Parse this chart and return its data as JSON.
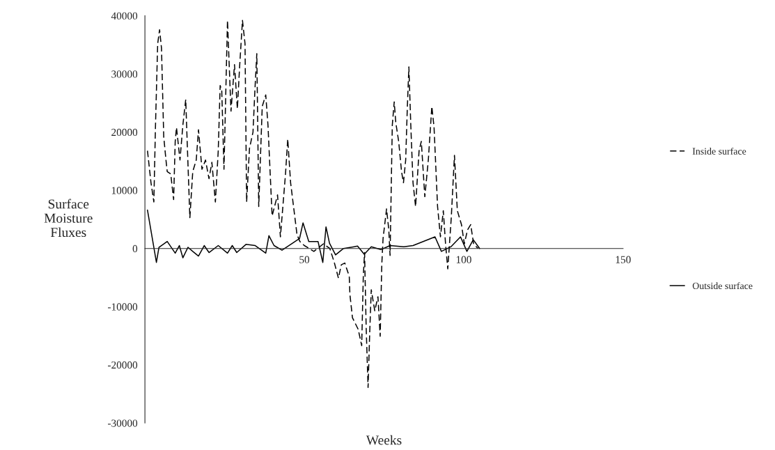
{
  "chart_data": {
    "type": "line",
    "xlabel": "Weeks",
    "ylabel": "Surface\nMoisture\nFluxes",
    "xlim": [
      0,
      150
    ],
    "xticks": [
      50,
      100,
      150
    ],
    "ylim": [
      -30000,
      40000
    ],
    "yticks": [
      -30000,
      -20000,
      -10000,
      0,
      10000,
      20000,
      30000,
      40000
    ],
    "legend": "right",
    "grid": false,
    "marker": "none",
    "series": [
      {
        "name": "Inside surface",
        "color": "#000000",
        "line_style": "dashed",
        "x": [
          0.8,
          1.9,
          2.8,
          3.3,
          4.0,
          4.6,
          5.2,
          5.9,
          6.6,
          7.0,
          8.1,
          9.0,
          9.5,
          9.9,
          11.0,
          11.9,
          12.8,
          13.2,
          14.1,
          15.0,
          16.1,
          16.8,
          17.9,
          19.0,
          20.1,
          21.0,
          22.1,
          23.0,
          23.6,
          24.1,
          24.8,
          25.3,
          25.9,
          27.0,
          28.1,
          29.0,
          29.7,
          30.6,
          31.4,
          31.9,
          32.8,
          33.9,
          34.5,
          35.1,
          35.7,
          36.8,
          37.9,
          38.6,
          39.9,
          41.6,
          42.5,
          44.1,
          44.8,
          45.7,
          47.7,
          48.6,
          50.0,
          53.0,
          56.0,
          58.0,
          59.4,
          60.7,
          61.6,
          62.7,
          64.1,
          64.3,
          65.1,
          66.9,
          68.0,
          68.5,
          68.9,
          69.4,
          70.0,
          70.5,
          71.0,
          72.1,
          73.1,
          73.8,
          74.3,
          74.7,
          75.8,
          76.5,
          76.9,
          77.6,
          78.2,
          78.7,
          79.6,
          80.5,
          81.1,
          81.8,
          82.3,
          82.8,
          83.4,
          84.1,
          84.9,
          86.0,
          86.7,
          87.8,
          88.9,
          90.0,
          90.7,
          91.8,
          92.7,
          93.6,
          94.3,
          95.0,
          96.1,
          97.1,
          98.0,
          99.3,
          100.2,
          101.2,
          102.2,
          103.1,
          104.5
        ],
        "values": [
          16800,
          11300,
          8000,
          20800,
          35200,
          37600,
          34400,
          19200,
          15200,
          13200,
          12800,
          8400,
          18400,
          20800,
          15200,
          21200,
          25600,
          19200,
          5300,
          13200,
          15200,
          20400,
          13600,
          15200,
          12000,
          14800,
          8000,
          16800,
          28000,
          27200,
          13600,
          25200,
          39200,
          23600,
          31600,
          24000,
          31200,
          39200,
          35200,
          8000,
          17200,
          20000,
          27200,
          33500,
          7200,
          24400,
          26400,
          21200,
          5600,
          9200,
          2000,
          12800,
          18800,
          11300,
          2400,
          1200,
          500,
          -500,
          800,
          0,
          -2400,
          -5100,
          -2800,
          -2500,
          -4800,
          -7900,
          -11900,
          -13900,
          -16700,
          -4800,
          -700,
          -13500,
          -23900,
          -14700,
          -7100,
          -10700,
          -8300,
          -15100,
          -2800,
          1700,
          6800,
          3200,
          -1200,
          21200,
          25200,
          21600,
          18400,
          13200,
          11300,
          15200,
          24000,
          31200,
          21200,
          11300,
          7200,
          16800,
          18400,
          8900,
          15200,
          24400,
          20800,
          7200,
          2000,
          6500,
          800,
          -3500,
          5300,
          16000,
          6500,
          4100,
          800,
          3200,
          4100,
          800,
          0
        ]
      },
      {
        "name": "Outside surface",
        "color": "#000000",
        "line_style": "solid",
        "x": [
          0.8,
          3.6,
          4.4,
          7.0,
          9.5,
          10.8,
          11.9,
          13.5,
          15.0,
          16.8,
          18.6,
          20.1,
          23.0,
          25.9,
          27.4,
          28.8,
          31.7,
          34.6,
          37.9,
          38.9,
          40.5,
          43.0,
          46.3,
          48.5,
          49.6,
          51.4,
          54.3,
          55.8,
          56.8,
          57.9,
          59.8,
          62.3,
          66.7,
          68.8,
          71.0,
          74.0,
          76.9,
          81.2,
          84.1,
          91.0,
          93.0,
          96.0,
          99.0,
          101.0,
          103.0,
          105.0
        ],
        "values": [
          6600,
          -2400,
          200,
          1200,
          -800,
          500,
          -1600,
          200,
          -500,
          -1300,
          500,
          -700,
          500,
          -800,
          500,
          -700,
          700,
          500,
          -800,
          2200,
          500,
          -300,
          900,
          1700,
          4400,
          1200,
          1200,
          -2400,
          3700,
          900,
          -1100,
          0,
          400,
          -1000,
          300,
          -200,
          500,
          300,
          500,
          2000,
          -500,
          300,
          2000,
          -500,
          1500,
          0
        ]
      }
    ]
  }
}
